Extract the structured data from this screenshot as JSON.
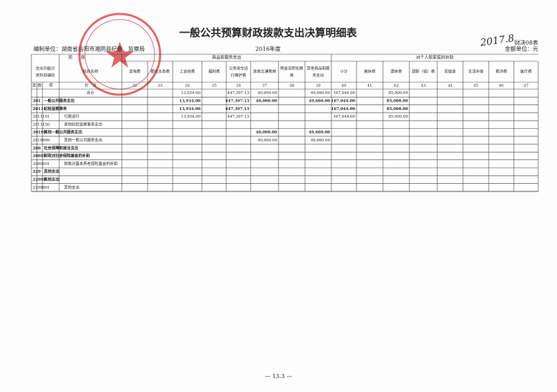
{
  "header": {
    "title": "一般公共预算财政拨款支出决算明细表",
    "form_no": "财决08表",
    "unit_label": "金额单位：元",
    "org": "编制单位：湖南省岳阳市湘阴县纪委、监察局",
    "year": "2016年度",
    "signature": "2017.8"
  },
  "table": {
    "item_label": "项　　目",
    "group1": "商品和服务支出",
    "group2": "对个人和家庭的补助",
    "code_header": "支出功能分类科目编码",
    "name_header": "科目名称",
    "level_labels": [
      "类",
      "款",
      "项"
    ],
    "col_label": "栏　次",
    "columns": [
      {
        "label": "咨询费",
        "number": "32"
      },
      {
        "label": "委托业务费",
        "number": "33"
      },
      {
        "label": "工会经费",
        "number": "34"
      },
      {
        "label": "福利费",
        "number": "35"
      },
      {
        "label": "公务用车运行维护费",
        "number": "36"
      },
      {
        "label": "其他交通费用",
        "number": "37"
      },
      {
        "label": "税金及附加费用",
        "number": "38"
      },
      {
        "label": "其他商品和服务支出",
        "number": "39"
      },
      {
        "label": "小计",
        "number": "40"
      },
      {
        "label": "离休费",
        "number": "41"
      },
      {
        "label": "退休费",
        "number": "42"
      },
      {
        "label": "退职（役）费",
        "number": "43"
      },
      {
        "label": "抚恤金",
        "number": "44"
      },
      {
        "label": "生活补助",
        "number": "45"
      },
      {
        "label": "救济费",
        "number": "46"
      },
      {
        "label": "医疗费",
        "number": "47"
      }
    ],
    "rows": [
      {
        "code": null,
        "name": "合计",
        "cells": [
          null,
          null,
          "13,934.00",
          null,
          "447,397.13",
          "40,000.00",
          null,
          "49,660.00",
          "167,044.00",
          null,
          "85,000.00",
          null,
          null,
          null,
          null,
          null
        ]
      },
      {
        "code": "201",
        "name": "一般公共服务支出",
        "cells": [
          null,
          null,
          "13,934.00",
          null,
          "447,397.13",
          "40,000.00",
          null,
          "49,660.00",
          "167,044.00",
          null,
          "85,000.00",
          null,
          null,
          null,
          null,
          null
        ]
      },
      {
        "code": "20111",
        "name": "纪检监察事务",
        "cells": [
          null,
          null,
          "13,934.00",
          null,
          "447,397.13",
          null,
          null,
          null,
          "167,044.00",
          null,
          "85,000.00",
          null,
          null,
          null,
          null,
          null
        ]
      },
      {
        "code": "2011101",
        "name": "行政运行",
        "cells": [
          null,
          null,
          "13,934.00",
          null,
          "447,397.13",
          null,
          null,
          null,
          "167,044.00",
          null,
          "85,000.00",
          null,
          null,
          null,
          null,
          null
        ]
      },
      {
        "code": "2011150",
        "name": "其他纪检监察事务支出",
        "cells": [
          null,
          null,
          null,
          null,
          null,
          null,
          null,
          null,
          null,
          null,
          null,
          null,
          null,
          null,
          null,
          null
        ]
      },
      {
        "code": "20199",
        "name": "其他一般公共服务支出",
        "cells": [
          null,
          null,
          null,
          null,
          null,
          "40,000.00",
          null,
          "49,660.00",
          null,
          null,
          null,
          null,
          null,
          null,
          null,
          null
        ]
      },
      {
        "code": "2019999",
        "name": "其他一般公共服务支出",
        "cells": [
          null,
          null,
          null,
          null,
          null,
          "40,000.00",
          null,
          "49,660.00",
          null,
          null,
          null,
          null,
          null,
          null,
          null,
          null
        ]
      },
      {
        "code": "208",
        "name": "社会保障和就业支出",
        "cells": [
          null,
          null,
          null,
          null,
          null,
          null,
          null,
          null,
          null,
          null,
          null,
          null,
          null,
          null,
          null,
          null
        ]
      },
      {
        "code": "20805",
        "name": "财政对社会保险基金的补助",
        "cells": [
          null,
          null,
          null,
          null,
          null,
          null,
          null,
          null,
          null,
          null,
          null,
          null,
          null,
          null,
          null,
          null
        ]
      },
      {
        "code": "2080501",
        "name": "财政对基本养老保险基金的补助",
        "cells": [
          null,
          null,
          null,
          null,
          null,
          null,
          null,
          null,
          null,
          null,
          null,
          null,
          null,
          null,
          null,
          null
        ]
      },
      {
        "code": "229",
        "name": "其他支出",
        "cells": [
          null,
          null,
          null,
          null,
          null,
          null,
          null,
          null,
          null,
          null,
          null,
          null,
          null,
          null,
          null,
          null
        ]
      },
      {
        "code": "22999",
        "name": "其他支出",
        "cells": [
          null,
          null,
          null,
          null,
          null,
          null,
          null,
          null,
          null,
          null,
          null,
          null,
          null,
          null,
          null,
          null
        ]
      },
      {
        "code": "2299901",
        "name": "其他支出",
        "cells": [
          null,
          null,
          null,
          null,
          null,
          null,
          null,
          null,
          null,
          null,
          null,
          null,
          null,
          null,
          null,
          null
        ]
      }
    ]
  },
  "footer": {
    "page": "— 13.3 —"
  }
}
